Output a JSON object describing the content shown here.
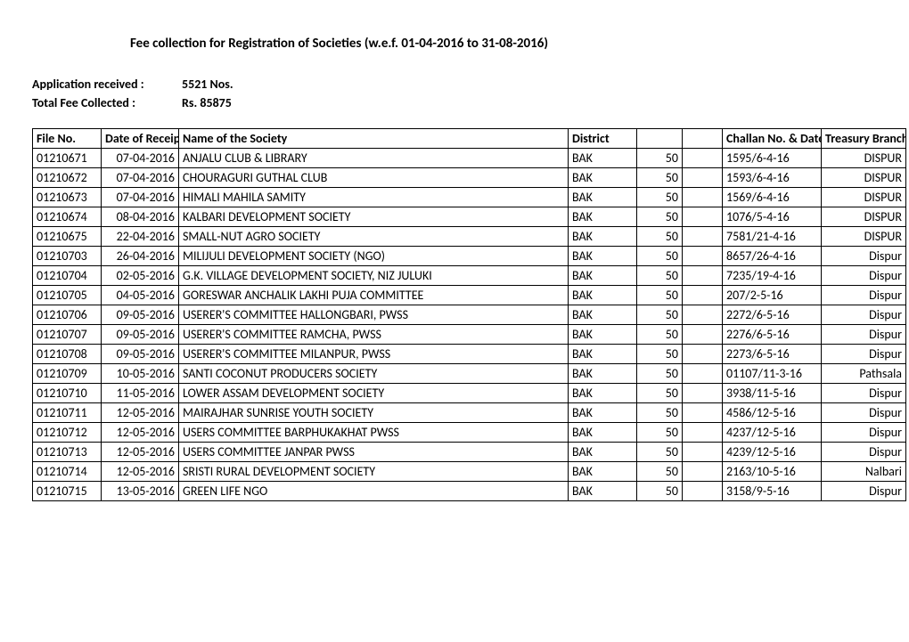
{
  "title": "Fee collection for Registration of Societies (w.e.f. 01-04-2016 to 31-08-2016)",
  "summary": {
    "application_label": "Application received :",
    "application_value": "5521 Nos.",
    "total_fee_label": "Total Fee Collected :",
    "total_fee_value": "Rs. 85875"
  },
  "columns": {
    "file_no": "File No.",
    "date_of_receipt": "Date of Receipt",
    "name": "Name of the Society",
    "district": "District",
    "amount": "",
    "blank": "",
    "challan": "Challan No. & Date",
    "treasury": "Treasury Branch"
  },
  "rows": [
    {
      "file": "01210671",
      "date": "07-04-2016",
      "name": "ANJALU CLUB & LIBRARY",
      "district": "BAK",
      "amt": "50",
      "challan": "1595/6-4-16",
      "treasury": "DISPUR"
    },
    {
      "file": "01210672",
      "date": "07-04-2016",
      "name": "CHOURAGURI GUTHAL CLUB",
      "district": "BAK",
      "amt": "50",
      "challan": "1593/6-4-16",
      "treasury": "DISPUR"
    },
    {
      "file": "01210673",
      "date": "07-04-2016",
      "name": "HIMALI MAHILA SAMITY",
      "district": "BAK",
      "amt": "50",
      "challan": "1569/6-4-16",
      "treasury": "DISPUR"
    },
    {
      "file": "01210674",
      "date": "08-04-2016",
      "name": "KALBARI DEVELOPMENT SOCIETY",
      "district": "BAK",
      "amt": "50",
      "challan": "1076/5-4-16",
      "treasury": "DISPUR"
    },
    {
      "file": "01210675",
      "date": "22-04-2016",
      "name": "SMALL-NUT AGRO SOCIETY",
      "district": "BAK",
      "amt": "50",
      "challan": "7581/21-4-16",
      "treasury": "DISPUR"
    },
    {
      "file": "01210703",
      "date": "26-04-2016",
      "name": "MILIJULI DEVELOPMENT SOCIETY (NGO)",
      "district": "BAK",
      "amt": "50",
      "challan": "8657/26-4-16",
      "treasury": "Dispur"
    },
    {
      "file": "01210704",
      "date": "02-05-2016",
      "name": "G.K. VILLAGE DEVELOPMENT SOCIETY, NIZ JULUKI",
      "district": "BAK",
      "amt": "50",
      "challan": "7235/19-4-16",
      "treasury": "Dispur"
    },
    {
      "file": "01210705",
      "date": "04-05-2016",
      "name": "GORESWAR ANCHALIK LAKHI PUJA COMMITTEE",
      "district": "BAK",
      "amt": "50",
      "challan": "207/2-5-16",
      "treasury": "Dispur"
    },
    {
      "file": "01210706",
      "date": "09-05-2016",
      "name": "USERER'S COMMITTEE HALLONGBARI, PWSS",
      "district": "BAK",
      "amt": "50",
      "challan": "2272/6-5-16",
      "treasury": "Dispur"
    },
    {
      "file": "01210707",
      "date": "09-05-2016",
      "name": "USERER'S COMMITTEE RAMCHA, PWSS",
      "district": "BAK",
      "amt": "50",
      "challan": "2276/6-5-16",
      "treasury": "Dispur"
    },
    {
      "file": "01210708",
      "date": "09-05-2016",
      "name": "USERER'S COMMITTEE MILANPUR, PWSS",
      "district": "BAK",
      "amt": "50",
      "challan": "2273/6-5-16",
      "treasury": "Dispur"
    },
    {
      "file": "01210709",
      "date": "10-05-2016",
      "name": "SANTI COCONUT PRODUCERS SOCIETY",
      "district": "BAK",
      "amt": "50",
      "challan": "01107/11-3-16",
      "treasury": "Pathsala"
    },
    {
      "file": "01210710",
      "date": "11-05-2016",
      "name": "LOWER ASSAM DEVELOPMENT SOCIETY",
      "district": "BAK",
      "amt": "50",
      "challan": "3938/11-5-16",
      "treasury": "Dispur"
    },
    {
      "file": "01210711",
      "date": "12-05-2016",
      "name": "MAIRAJHAR SUNRISE YOUTH SOCIETY",
      "district": "BAK",
      "amt": "50",
      "challan": "4586/12-5-16",
      "treasury": "Dispur"
    },
    {
      "file": "01210712",
      "date": "12-05-2016",
      "name": "USERS COMMITTEE BARPHUKAKHAT PWSS",
      "district": "BAK",
      "amt": "50",
      "challan": "4237/12-5-16",
      "treasury": "Dispur"
    },
    {
      "file": "01210713",
      "date": "12-05-2016",
      "name": "USERS COMMITTEE JANPAR PWSS",
      "district": "BAK",
      "amt": "50",
      "challan": "4239/12-5-16",
      "treasury": "Dispur"
    },
    {
      "file": "01210714",
      "date": "12-05-2016",
      "name": "SRISTI RURAL DEVELOPMENT SOCIETY",
      "district": "BAK",
      "amt": "50",
      "challan": "2163/10-5-16",
      "treasury": "Nalbari"
    },
    {
      "file": "01210715",
      "date": "13-05-2016",
      "name": "GREEN LIFE NGO",
      "district": "BAK",
      "amt": "50",
      "challan": "3158/9-5-16",
      "treasury": "Dispur"
    }
  ]
}
